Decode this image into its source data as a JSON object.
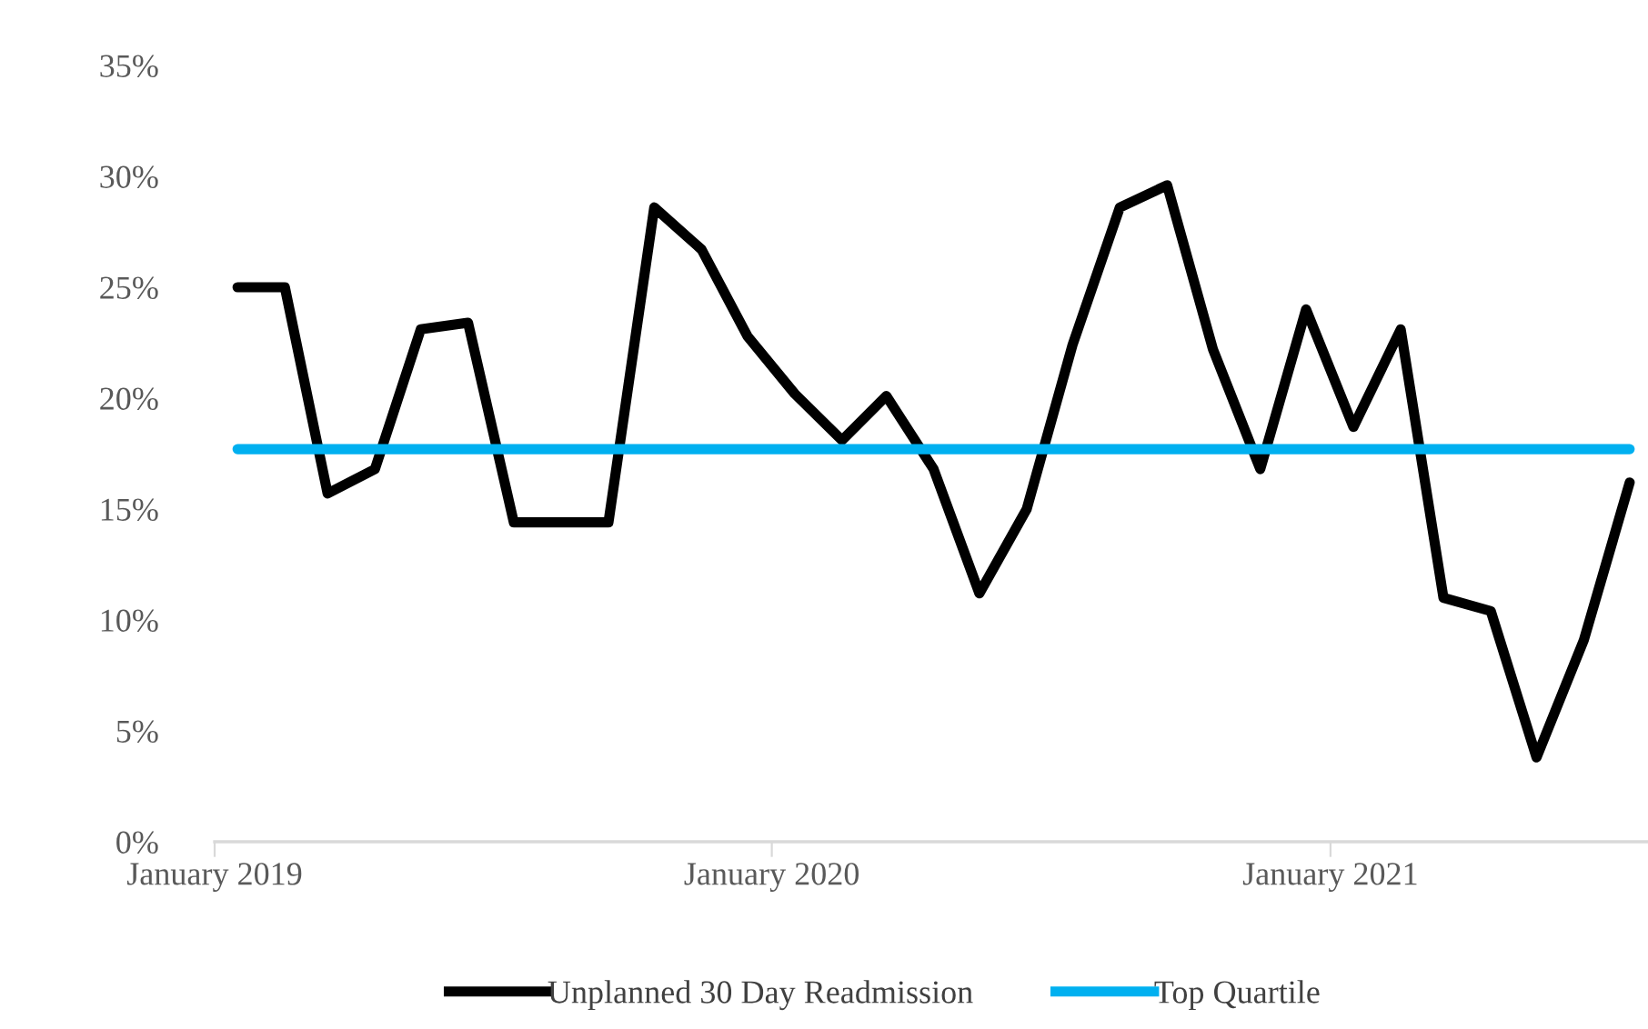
{
  "chart_data": {
    "type": "line",
    "x": [
      "2019-01-16",
      "2019-02-16",
      "2019-03-16",
      "2019-04-16",
      "2019-05-16",
      "2019-06-16",
      "2019-07-16",
      "2019-08-16",
      "2019-09-16",
      "2019-10-16",
      "2019-11-16",
      "2019-12-16",
      "2020-01-16",
      "2020-02-16",
      "2020-03-16",
      "2020-04-16",
      "2020-05-16",
      "2020-06-16",
      "2020-07-16",
      "2020-08-16",
      "2020-09-16",
      "2020-10-16",
      "2020-11-16",
      "2020-12-16",
      "2021-01-16",
      "2021-02-16",
      "2021-03-16",
      "2021-04-16",
      "2021-05-16",
      "2021-06-16",
      "2021-07-16"
    ],
    "series": [
      {
        "name": "Unplanned 30 Day Readmission",
        "color": "#000000",
        "values": [
          25.0,
          25.0,
          15.7,
          16.8,
          23.1,
          23.4,
          14.4,
          14.4,
          14.4,
          28.6,
          26.7,
          22.8,
          20.2,
          18.1,
          20.1,
          16.8,
          11.2,
          15.0,
          22.4,
          28.6,
          29.6,
          22.2,
          16.8,
          24.0,
          18.7,
          23.1,
          11.0,
          10.4,
          3.8,
          9.1,
          16.2
        ]
      },
      {
        "name": "Top Quartile",
        "color": "#00b0f0",
        "values": [
          17.7,
          17.7,
          17.7,
          17.7,
          17.7,
          17.7,
          17.7,
          17.7,
          17.7,
          17.7,
          17.7,
          17.7,
          17.7,
          17.7,
          17.7,
          17.7,
          17.7,
          17.7,
          17.7,
          17.7,
          17.7,
          17.7,
          17.7,
          17.7,
          17.7,
          17.7,
          17.7,
          17.7,
          17.7,
          17.7,
          17.7
        ]
      }
    ],
    "xlim": [
      "2019-01-01",
      "2021-07-28"
    ],
    "xticks": [
      {
        "value": "2019-01-01",
        "label": "January 2019"
      },
      {
        "value": "2020-01-01",
        "label": "January 2020"
      },
      {
        "value": "2021-01-01",
        "label": "January 2021"
      }
    ],
    "ylim": [
      0,
      35
    ],
    "yticks": [
      {
        "value": 0,
        "label": "0%"
      },
      {
        "value": 5,
        "label": "5%"
      },
      {
        "value": 10,
        "label": "10%"
      },
      {
        "value": 15,
        "label": "15%"
      },
      {
        "value": 20,
        "label": "20%"
      },
      {
        "value": 25,
        "label": "25%"
      },
      {
        "value": 30,
        "label": "30%"
      },
      {
        "value": 35,
        "label": "35%"
      }
    ],
    "grid": false,
    "legend": "bottom",
    "marker": "none",
    "line_style": "solid"
  }
}
